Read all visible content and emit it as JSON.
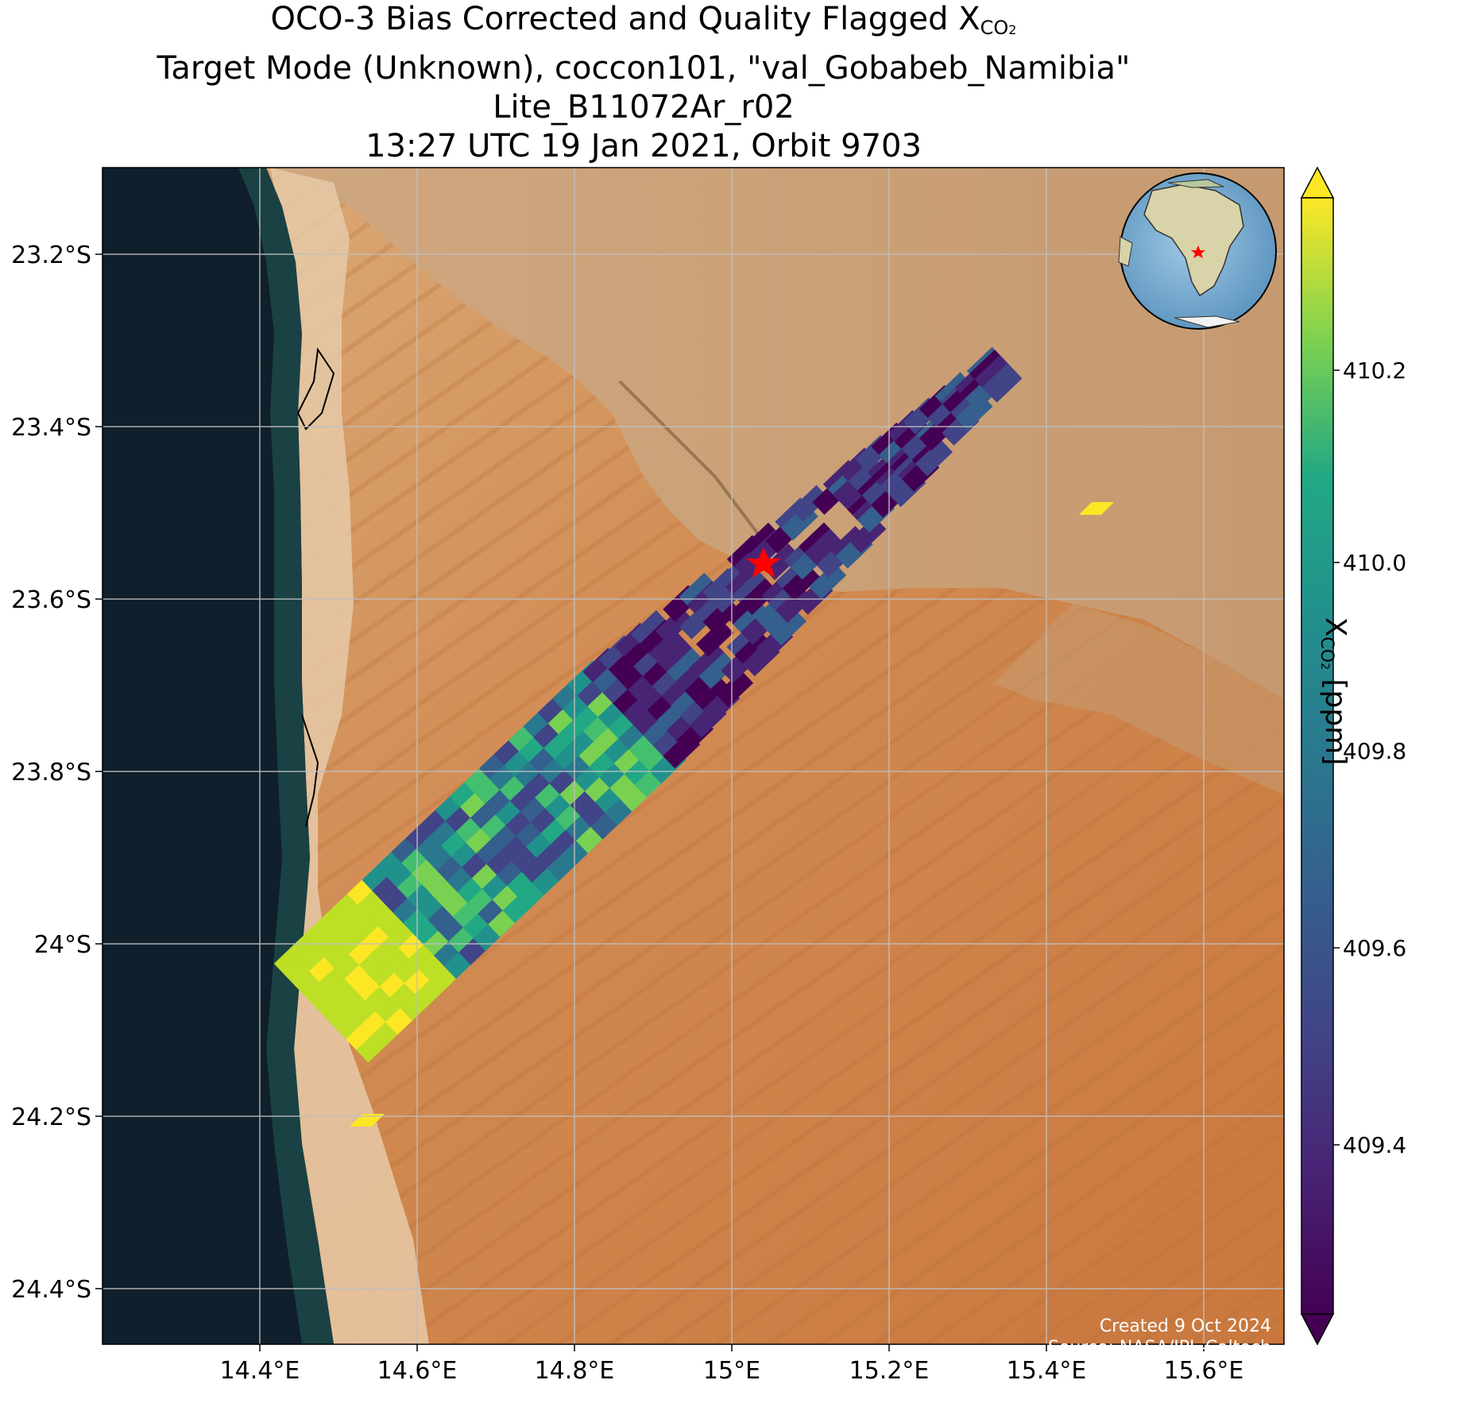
{
  "title": {
    "line1_prefix": "OCO-3 Bias Corrected and Quality Flagged X",
    "line1_sub": "CO",
    "line1_subsub": "2",
    "line2": "Target Mode (Unknown), coccon101, \"val_Gobabeb_Namibia\"",
    "line3": "Lite_B11072Ar_r02",
    "line4": "13:27 UTC 19 Jan 2021, Orbit 9703"
  },
  "axes": {
    "lat_ticks": [
      "23.2°S",
      "23.4°S",
      "23.6°S",
      "23.8°S",
      "24°S",
      "24.2°S",
      "24.4°S"
    ],
    "lon_ticks": [
      "14.4°E",
      "14.6°E",
      "14.8°E",
      "15°E",
      "15.2°E",
      "15.4°E",
      "15.6°E"
    ]
  },
  "colorbar": {
    "label_prefix": "X",
    "label_sub": "CO",
    "label_subsub": "2",
    "label_suffix": " [ppm]",
    "ticks": [
      "409.4",
      "409.6",
      "409.8",
      "410.0",
      "410.2"
    ],
    "colormap": "viridis",
    "extend": "both"
  },
  "credit": {
    "created": "Created 9 Oct 2024",
    "source": "Source: NASA/JPL-Caltech"
  },
  "target_marker": {
    "symbol": "star",
    "color": "#ff0000"
  },
  "inset_globe": {
    "marker": "star",
    "marker_color": "#ff0000"
  },
  "colors": {
    "ocean": "#0f1f2b",
    "desert": "#d4955a",
    "rock": "#c9a27a",
    "grid": "#bfbfbf",
    "star": "#ff0000"
  }
}
